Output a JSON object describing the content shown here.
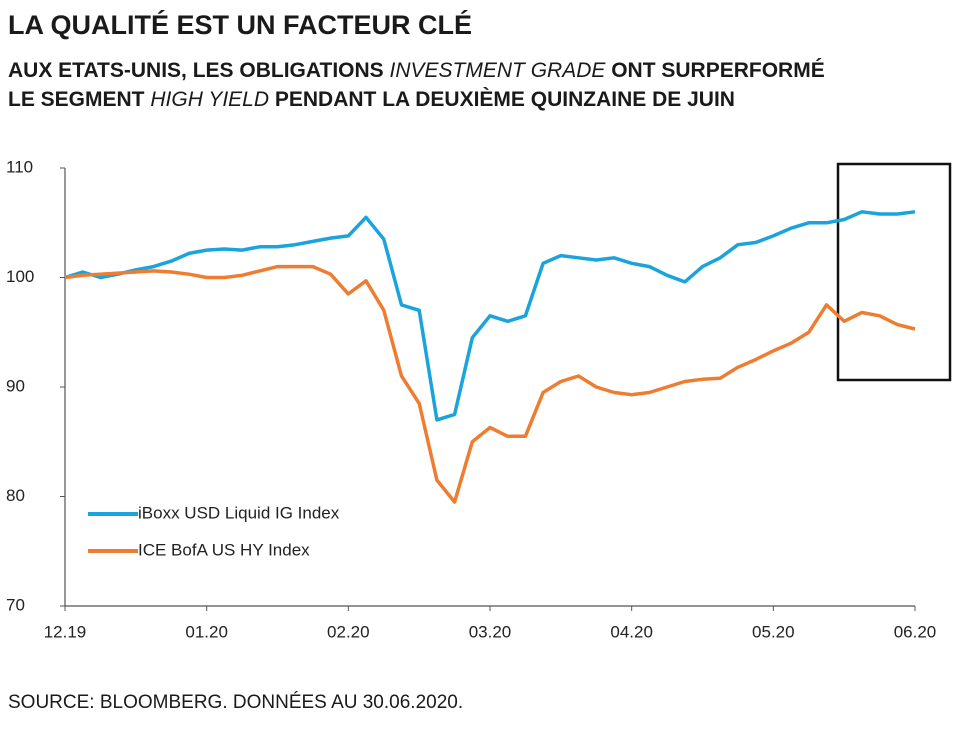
{
  "chart_data": {
    "type": "line",
    "title": "LA QUALITÉ EST UN FACTEUR CLÉ",
    "subtitle": [
      [
        {
          "text": "AUX ETATS-UNIS, LES OBLIGATIONS ",
          "italic": false
        },
        {
          "text": "INVESTMENT GRADE",
          "italic": true
        },
        {
          "text": " ONT SURPERFORMÉ",
          "italic": false
        }
      ],
      [
        {
          "text": "LE SEGMENT ",
          "italic": false
        },
        {
          "text": "HIGH YIELD",
          "italic": true
        },
        {
          "text": " PENDANT LA DEUXIÈME QUINZAINE DE JUIN",
          "italic": false
        }
      ]
    ],
    "source": "SOURCE: BLOOMBERG. DONNÉES AU 30.06.2020.",
    "categories": [
      "12.19",
      null,
      null,
      null,
      null,
      null,
      null,
      null,
      "01.20",
      null,
      null,
      null,
      null,
      null,
      null,
      null,
      "02.20",
      null,
      null,
      null,
      null,
      null,
      null,
      null,
      "03.20",
      null,
      null,
      null,
      null,
      null,
      null,
      null,
      "04.20",
      null,
      null,
      null,
      null,
      null,
      null,
      null,
      "05.20",
      null,
      null,
      null,
      null,
      null,
      null,
      null,
      "06.20"
    ],
    "series": [
      {
        "name": "iBoxx USD Liquid IG Index",
        "color": "#1aa3dc",
        "values": [
          100,
          100.5,
          100,
          100.3,
          100.7,
          101,
          101.5,
          102.2,
          102.5,
          102.6,
          102.5,
          102.8,
          102.8,
          103,
          103.3,
          103.6,
          103.8,
          105.5,
          103.5,
          97.5,
          97,
          87,
          87.5,
          94.5,
          96.5,
          96,
          96.5,
          101.3,
          102,
          101.8,
          101.6,
          101.8,
          101.3,
          101,
          100.2,
          99.6,
          101,
          101.8,
          103,
          103.2,
          103.8,
          104.5,
          105,
          105,
          105.3,
          106,
          105.8,
          105.8,
          106
        ]
      },
      {
        "name": "ICE BofA US HY Index",
        "color": "#ee7d31",
        "values": [
          100,
          100.2,
          100.3,
          100.4,
          100.5,
          100.6,
          100.5,
          100.3,
          100,
          100,
          100.2,
          100.6,
          101,
          101,
          101,
          100.3,
          98.5,
          99.7,
          97,
          91,
          88.5,
          81.5,
          79.5,
          85,
          86.3,
          85.5,
          85.5,
          89.5,
          90.5,
          91,
          90,
          89.5,
          89.3,
          89.5,
          90,
          90.5,
          90.7,
          90.8,
          91.8,
          92.5,
          93.3,
          94,
          95,
          97.5,
          96,
          96.8,
          96.5,
          95.7,
          95.3
        ]
      }
    ],
    "ylim": [
      70,
      110
    ],
    "yticks": [
      70,
      80,
      90,
      100,
      110
    ],
    "grid": false,
    "legend": "lower-left"
  }
}
